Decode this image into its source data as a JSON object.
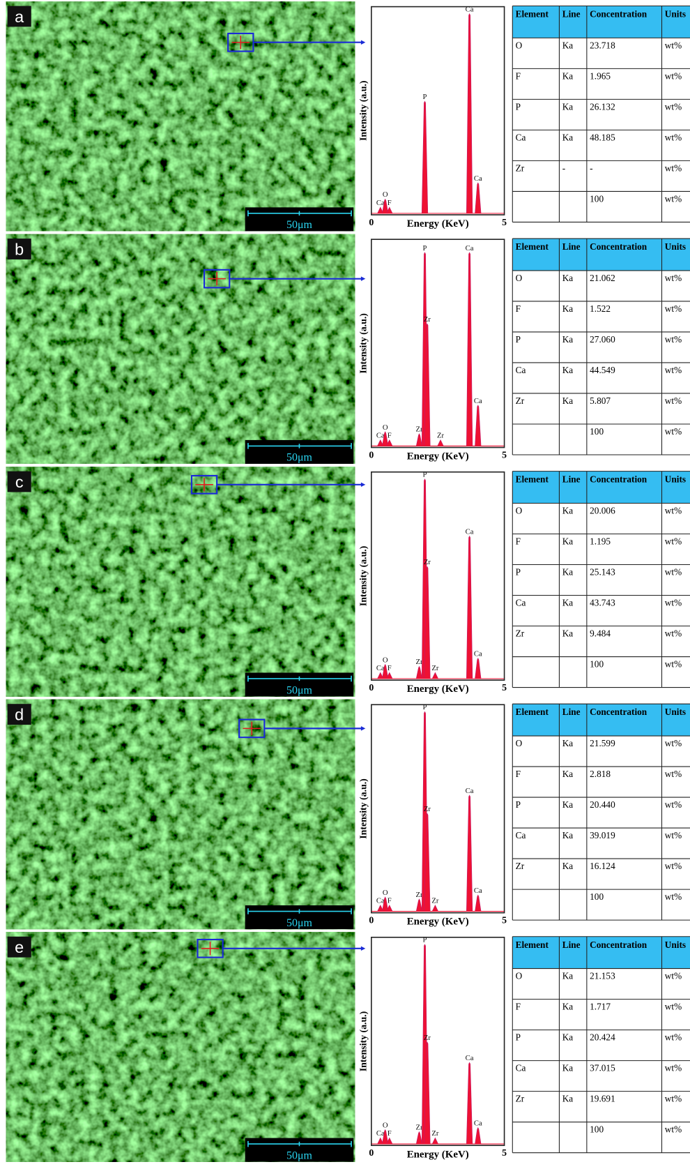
{
  "panels": [
    {
      "label": "a",
      "scale_bar": "50μm",
      "spectrum": {
        "x_label": "Energy (KeV)",
        "y_label": "Intensity (a.u.)",
        "xlim": [
          0,
          5
        ],
        "xticks": [
          0,
          5
        ],
        "ylim": [
          0,
          100
        ],
        "peaks": [
          {
            "label": "Ca",
            "x": 0.34,
            "y": 3
          },
          {
            "label": "O",
            "x": 0.52,
            "y": 7
          },
          {
            "label": "F",
            "x": 0.68,
            "y": 3
          },
          {
            "label": "P",
            "x": 2.01,
            "y": 55
          },
          {
            "label": "Ca",
            "x": 3.69,
            "y": 98
          },
          {
            "label": "Ca",
            "x": 4.01,
            "y": 15
          }
        ]
      },
      "table": {
        "header": [
          "Element",
          "Line",
          "Concentration",
          "Units"
        ],
        "rows": [
          [
            "O",
            "Ka",
            "23.718",
            "wt%"
          ],
          [
            "F",
            "Ka",
            "1.965",
            "wt%"
          ],
          [
            "P",
            "Ka",
            "26.132",
            "wt%"
          ],
          [
            "Ca",
            "Ka",
            "48.185",
            "wt%"
          ],
          [
            "Zr",
            "-",
            "-",
            "wt%"
          ],
          [
            null,
            null,
            "100",
            "wt%"
          ]
        ]
      }
    },
    {
      "label": "b",
      "scale_bar": "50μm",
      "spectrum": {
        "x_label": "Energy (KeV)",
        "y_label": "Intensity (a.u.)",
        "xlim": [
          0,
          5
        ],
        "xticks": [
          0,
          5
        ],
        "ylim": [
          0,
          100
        ],
        "peaks": [
          {
            "label": "Ca",
            "x": 0.34,
            "y": 3
          },
          {
            "label": "O",
            "x": 0.52,
            "y": 7
          },
          {
            "label": "F",
            "x": 0.68,
            "y": 3
          },
          {
            "label": "Zr",
            "x": 1.8,
            "y": 6
          },
          {
            "label": "P",
            "x": 2.01,
            "y": 95
          },
          {
            "label": "Zr",
            "x": 2.1,
            "y": 60
          },
          {
            "label": "Zr",
            "x": 2.6,
            "y": 3
          },
          {
            "label": "Ca",
            "x": 3.69,
            "y": 95
          },
          {
            "label": "Ca",
            "x": 4.01,
            "y": 20
          }
        ]
      },
      "table": {
        "header": [
          "Element",
          "Line",
          "Concentration",
          "Units"
        ],
        "rows": [
          [
            "O",
            "Ka",
            "21.062",
            "wt%"
          ],
          [
            "F",
            "Ka",
            "1.522",
            "wt%"
          ],
          [
            "P",
            "Ka",
            "27.060",
            "wt%"
          ],
          [
            "Ca",
            "Ka",
            "44.549",
            "wt%"
          ],
          [
            "Zr",
            "Ka",
            "5.807",
            "wt%"
          ],
          [
            null,
            null,
            "100",
            "wt%"
          ]
        ]
      }
    },
    {
      "label": "c",
      "scale_bar": "50μm",
      "spectrum": {
        "x_label": "Energy (KeV)",
        "y_label": "Intensity (a.u.)",
        "xlim": [
          0,
          5
        ],
        "xticks": [
          0,
          5
        ],
        "ylim": [
          0,
          100
        ],
        "peaks": [
          {
            "label": "Ca",
            "x": 0.34,
            "y": 3
          },
          {
            "label": "O",
            "x": 0.52,
            "y": 7
          },
          {
            "label": "F",
            "x": 0.68,
            "y": 3
          },
          {
            "label": "Zr",
            "x": 1.8,
            "y": 6
          },
          {
            "label": "P",
            "x": 2.01,
            "y": 98
          },
          {
            "label": "Zr",
            "x": 2.1,
            "y": 55
          },
          {
            "label": "Zr",
            "x": 2.4,
            "y": 3
          },
          {
            "label": "Ca",
            "x": 3.69,
            "y": 70
          },
          {
            "label": "Ca",
            "x": 4.01,
            "y": 10
          }
        ]
      },
      "table": {
        "header": [
          "Element",
          "Line",
          "Concentration",
          "Units"
        ],
        "rows": [
          [
            "O",
            "Ka",
            "20.006",
            "wt%"
          ],
          [
            "F",
            "Ka",
            "1.195",
            "wt%"
          ],
          [
            "P",
            "Ka",
            "25.143",
            "wt%"
          ],
          [
            "Ca",
            "Ka",
            "43.743",
            "wt%"
          ],
          [
            "Zr",
            "Ka",
            "9.484",
            "wt%"
          ],
          [
            null,
            null,
            "100",
            "wt%"
          ]
        ]
      }
    },
    {
      "label": "d",
      "scale_bar": "50μm",
      "spectrum": {
        "x_label": "Energy (KeV)",
        "y_label": "Intensity (a.u.)",
        "xlim": [
          0,
          5
        ],
        "xticks": [
          0,
          5
        ],
        "ylim": [
          0,
          100
        ],
        "peaks": [
          {
            "label": "Ca",
            "x": 0.34,
            "y": 3
          },
          {
            "label": "O",
            "x": 0.52,
            "y": 7
          },
          {
            "label": "F",
            "x": 0.68,
            "y": 3
          },
          {
            "label": "Zr",
            "x": 1.8,
            "y": 6
          },
          {
            "label": "P",
            "x": 2.01,
            "y": 98
          },
          {
            "label": "Zr",
            "x": 2.1,
            "y": 48
          },
          {
            "label": "Zr",
            "x": 2.4,
            "y": 3
          },
          {
            "label": "Ca",
            "x": 3.69,
            "y": 57
          },
          {
            "label": "Ca",
            "x": 4.01,
            "y": 8
          }
        ]
      },
      "table": {
        "header": [
          "Element",
          "Line",
          "Concentration",
          "Units"
        ],
        "rows": [
          [
            "O",
            "Ka",
            "21.599",
            "wt%"
          ],
          [
            "F",
            "Ka",
            "2.818",
            "wt%"
          ],
          [
            "P",
            "Ka",
            "20.440",
            "wt%"
          ],
          [
            "Ca",
            "Ka",
            "39.019",
            "wt%"
          ],
          [
            "Zr",
            "Ka",
            "16.124",
            "wt%"
          ],
          [
            null,
            null,
            "100",
            "wt%"
          ]
        ]
      }
    },
    {
      "label": "e",
      "scale_bar": "50μm",
      "spectrum": {
        "x_label": "Energy (KeV)",
        "y_label": "Intensity (a.u.)",
        "xlim": [
          0,
          5
        ],
        "xticks": [
          0,
          5
        ],
        "ylim": [
          0,
          100
        ],
        "peaks": [
          {
            "label": "Ca",
            "x": 0.34,
            "y": 3
          },
          {
            "label": "O",
            "x": 0.52,
            "y": 7
          },
          {
            "label": "F",
            "x": 0.68,
            "y": 3
          },
          {
            "label": "Zr",
            "x": 1.8,
            "y": 6
          },
          {
            "label": "P",
            "x": 2.01,
            "y": 98
          },
          {
            "label": "Zr",
            "x": 2.1,
            "y": 50
          },
          {
            "label": "Zr",
            "x": 2.4,
            "y": 3
          },
          {
            "label": "Ca",
            "x": 3.69,
            "y": 40
          },
          {
            "label": "Ca",
            "x": 4.01,
            "y": 8
          }
        ]
      },
      "table": {
        "header": [
          "Element",
          "Line",
          "Concentration",
          "Units"
        ],
        "rows": [
          [
            "O",
            "Ka",
            "21.153",
            "wt%"
          ],
          [
            "F",
            "Ka",
            "1.717",
            "wt%"
          ],
          [
            "P",
            "Ka",
            "20.424",
            "wt%"
          ],
          [
            "Ca",
            "Ka",
            "37.015",
            "wt%"
          ],
          [
            "Zr",
            "Ka",
            "19.691",
            "wt%"
          ],
          [
            null,
            null,
            "100",
            "wt%"
          ]
        ]
      }
    }
  ]
}
